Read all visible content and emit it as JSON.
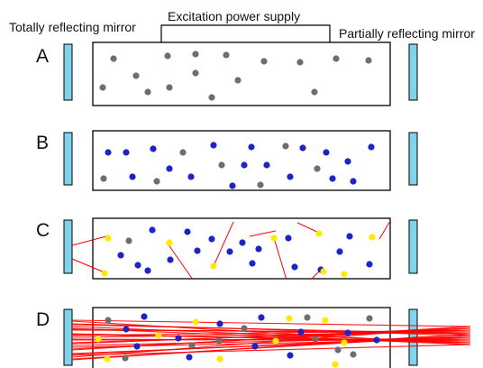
{
  "labels": {
    "left_mirror": "Totally reflecting mirror",
    "power_supply": "Excitation power supply",
    "right_mirror": "Partially reflecting mirror"
  },
  "stages": [
    {
      "label": "A",
      "atoms": {
        "ground": 16,
        "excited": 0,
        "emitting": 0
      }
    },
    {
      "label": "B",
      "atoms": {
        "ground": 9,
        "excited": 16,
        "emitting": 0
      }
    },
    {
      "label": "C",
      "atoms": {
        "ground": 1,
        "excited": 13,
        "emitting": 8
      }
    },
    {
      "label": "D",
      "atoms": {
        "ground": 10,
        "excited": 12,
        "emitting": 8
      }
    }
  ],
  "colors": {
    "mirror": "#7fd3ea",
    "ground_atom": "#6e6e6e",
    "excited_atom": "#1e22c8",
    "emitting_atom": "#ffea00",
    "photon": "#ff0000"
  }
}
